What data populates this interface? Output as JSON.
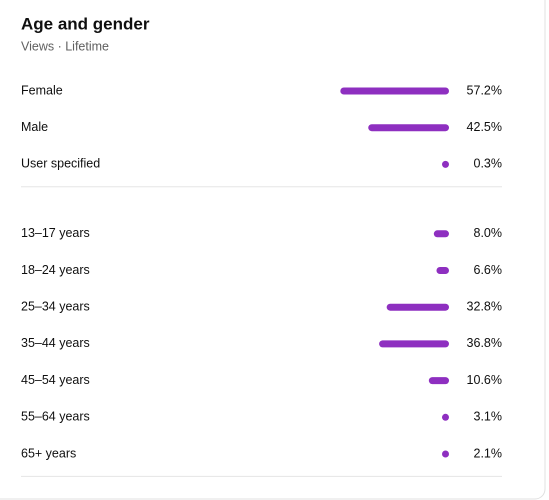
{
  "header": {
    "title": "Age and gender",
    "subtitle": "Views · Lifetime"
  },
  "groups": [
    {
      "rows": [
        {
          "label": "Female",
          "value": 57.2,
          "value_label": "57.2%"
        },
        {
          "label": "Male",
          "value": 42.5,
          "value_label": "42.5%"
        },
        {
          "label": "User specified",
          "value": 0.3,
          "value_label": "0.3%"
        }
      ]
    },
    {
      "rows": [
        {
          "label": "13–17 years",
          "value": 8.0,
          "value_label": "8.0%"
        },
        {
          "label": "18–24 years",
          "value": 6.6,
          "value_label": "6.6%"
        },
        {
          "label": "25–34 years",
          "value": 32.8,
          "value_label": "32.8%"
        },
        {
          "label": "35–44 years",
          "value": 36.8,
          "value_label": "36.8%"
        },
        {
          "label": "45–54 years",
          "value": 10.6,
          "value_label": "10.6%"
        },
        {
          "label": "55–64 years",
          "value": 3.1,
          "value_label": "3.1%"
        },
        {
          "label": "65+ years",
          "value": 2.1,
          "value_label": "2.1%"
        }
      ]
    }
  ],
  "bar_color": "#8e2fc0"
}
